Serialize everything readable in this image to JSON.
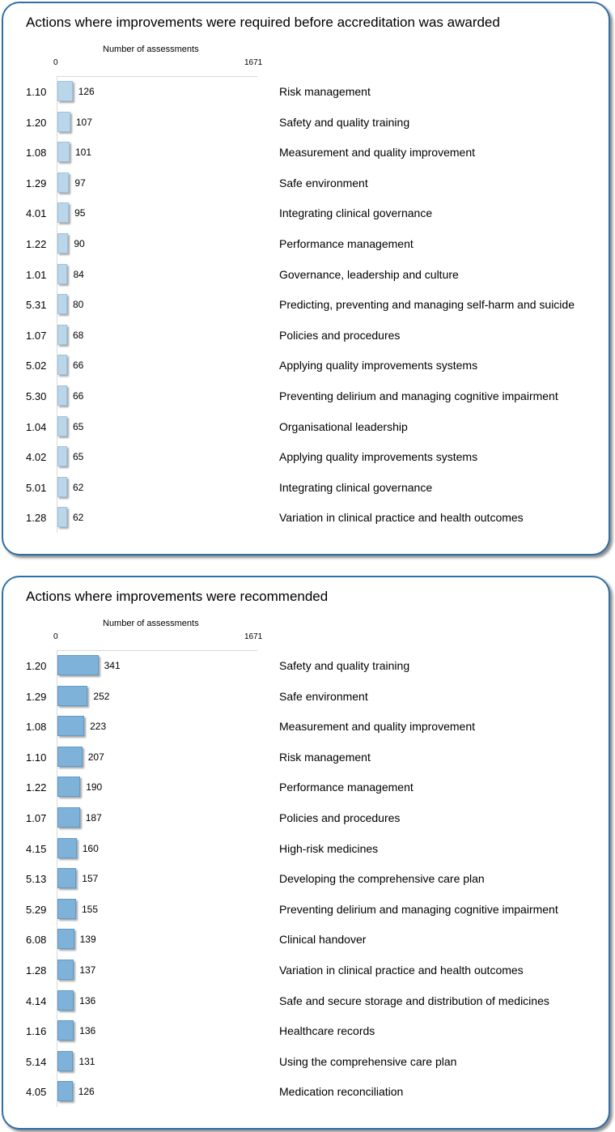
{
  "charts": [
    {
      "title": "Actions where improvements were required before accreditation was awarded",
      "axis_title": "Number  of assessments",
      "tick_min": "0",
      "tick_max": "1671",
      "bar_color": "#b9d6ea"
    },
    {
      "title": "Actions where improvements were recommended",
      "axis_title": "Number  of assessments",
      "tick_min": "0",
      "tick_max": "1671",
      "bar_color": "#7fb2d8"
    }
  ],
  "chart_data": [
    {
      "type": "bar",
      "orientation": "horizontal",
      "title": "Actions where improvements were required before accreditation was awarded",
      "xlabel": "Number  of assessments",
      "xlim": [
        0,
        1671
      ],
      "series": [
        {
          "values": [
            126,
            107,
            101,
            97,
            95,
            90,
            84,
            80,
            68,
            66,
            66,
            65,
            65,
            62,
            62
          ]
        }
      ],
      "categories": [
        "1.10",
        "1.20",
        "1.08",
        "1.29",
        "4.01",
        "1.22",
        "1.01",
        "5.31",
        "1.07",
        "5.02",
        "5.30",
        "1.04",
        "4.02",
        "5.01",
        "1.28"
      ],
      "category_names": [
        "Risk management",
        "Safety and quality training",
        "Measurement  and quality improvement",
        "Safe environment",
        "Integrating clinical governance",
        "Performance  management",
        "Governance,  leadership and culture",
        "Predicting, preventing and managing self-harm and suicide",
        "Policies and procedures",
        "Applying quality improvements  systems",
        "Preventing  delirium and managing cognitive impairment",
        "Organisational leadership",
        "Applying quality improvements  systems",
        "Integrating clinical governance",
        "Variation in clinical practice and health outcomes"
      ]
    },
    {
      "type": "bar",
      "orientation": "horizontal",
      "title": "Actions where improvements were recommended",
      "xlabel": "Number  of assessments",
      "xlim": [
        0,
        1671
      ],
      "series": [
        {
          "values": [
            341,
            252,
            223,
            207,
            190,
            187,
            160,
            157,
            155,
            139,
            137,
            136,
            136,
            131,
            126
          ]
        }
      ],
      "categories": [
        "1.20",
        "1.29",
        "1.08",
        "1.10",
        "1.22",
        "1.07",
        "4.15",
        "5.13",
        "5.29",
        "6.08",
        "1.28",
        "4.14",
        "1.16",
        "5.14",
        "4.05"
      ],
      "category_names": [
        "Safety and quality training",
        "Safe environment",
        "Measurement  and quality improvement",
        "Risk management",
        "Performance  management",
        "Policies and procedures",
        "High-risk medicines",
        "Developing the comprehensive  care plan",
        "Preventing  delirium and managing cognitive impairment",
        "Clinical handover",
        "Variation in clinical practice and health outcomes",
        "Safe and secure storage and distribution of medicines",
        "Healthcare records",
        "Using the comprehensive  care plan",
        "Medication reconciliation"
      ]
    }
  ]
}
